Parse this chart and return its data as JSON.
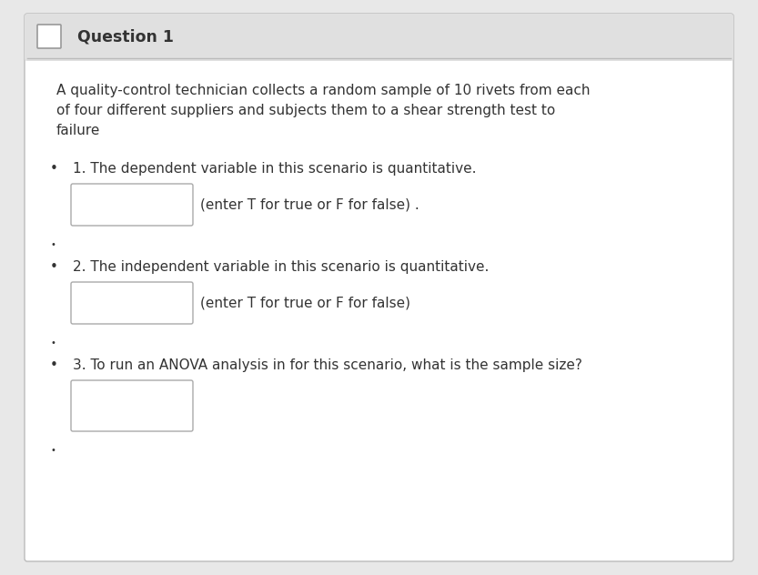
{
  "title": "Question 1",
  "bg_color": "#e8e8e8",
  "card_bg": "#ffffff",
  "header_bg": "#e0e0e0",
  "border_color": "#bbbbbb",
  "text_color": "#333333",
  "paragraph_lines": [
    "A quality-control technician collects a random sample of 10 rivets from each",
    "of four different suppliers and subjects them to a shear strength test to",
    "failure"
  ],
  "q1_label": "1. The dependent variable in this scenario is quantitative.",
  "q1_hint": "(enter T for true or F for false) .",
  "q2_label": "2. The independent variable in this scenario is quantitative.",
  "q2_hint": "(enter T for true or F for false)",
  "q3_label": "3. To run an ANOVA analysis in for this scenario, what is the sample size?",
  "box_color": "#ffffff",
  "box_border": "#aaaaaa",
  "title_fontsize": 12.5,
  "body_fontsize": 11.0,
  "hint_fontsize": 11.0,
  "small_bullet_size": 7.0
}
